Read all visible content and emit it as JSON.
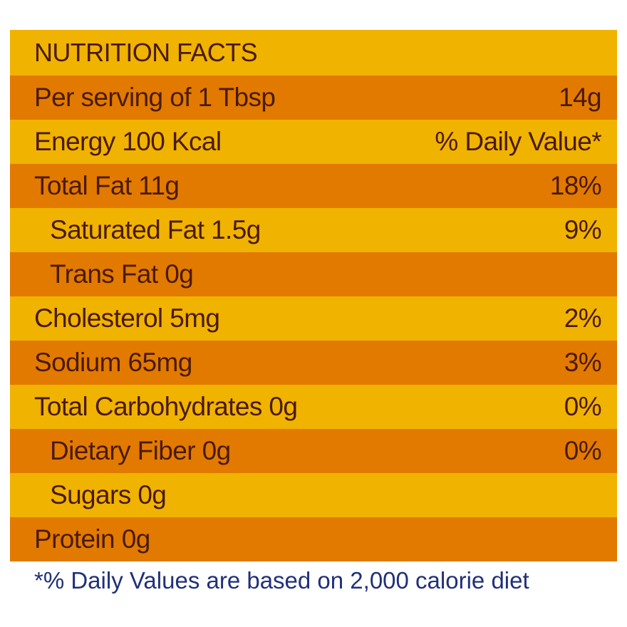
{
  "colors": {
    "band_light": "#f0b300",
    "band_dark": "#e27a00",
    "text": "#4a1a06",
    "footnote": "#20307a"
  },
  "title": "NUTRITION FACTS",
  "rows": [
    {
      "name": "Per serving of 1 Tbsp",
      "value": "14g"
    },
    {
      "name": "Energy 100 Kcal",
      "value": "% Daily Value*"
    },
    {
      "name": "Total Fat 11g",
      "value": "18%"
    },
    {
      "name": "Saturated Fat 1.5g",
      "value": "9%"
    },
    {
      "name": "Trans Fat 0g",
      "value": ""
    },
    {
      "name": "Cholesterol 5mg",
      "value": "2%"
    },
    {
      "name": "Sodium 65mg",
      "value": "3%"
    },
    {
      "name": "Total Carbohydrates 0g",
      "value": "0%"
    },
    {
      "name": "Dietary Fiber 0g",
      "value": "0%"
    },
    {
      "name": "Sugars 0g",
      "value": ""
    },
    {
      "name": "Protein 0g",
      "value": ""
    }
  ],
  "footnote": "*% Daily Values are based on 2,000 calorie diet"
}
